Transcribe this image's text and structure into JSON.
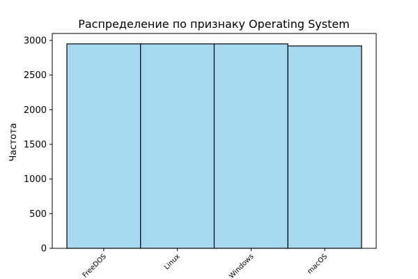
{
  "chart_data": {
    "type": "bar",
    "title": "Распределение по признаку Operating System",
    "xlabel": "",
    "ylabel": "Частота",
    "categories": [
      "FreeDOS",
      "Linux",
      "Windows",
      "macOS"
    ],
    "values": [
      2950,
      2950,
      2950,
      2920
    ],
    "ylim": [
      0,
      3100
    ],
    "yticks": [
      0,
      500,
      1000,
      1500,
      2000,
      2500,
      3000
    ],
    "grid": false,
    "bar_color": "#a6d9f0",
    "bar_edge_color": "#000000"
  }
}
